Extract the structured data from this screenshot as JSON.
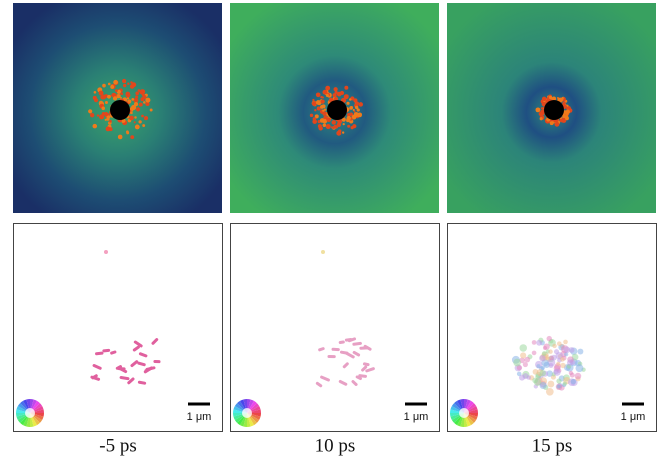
{
  "panels": [
    {
      "label": "-5 ps",
      "scale_bar": "1 μm"
    },
    {
      "label": "10 ps",
      "scale_bar": "1 μm"
    },
    {
      "label": "15 ps",
      "scale_bar": "1 μm"
    }
  ]
}
